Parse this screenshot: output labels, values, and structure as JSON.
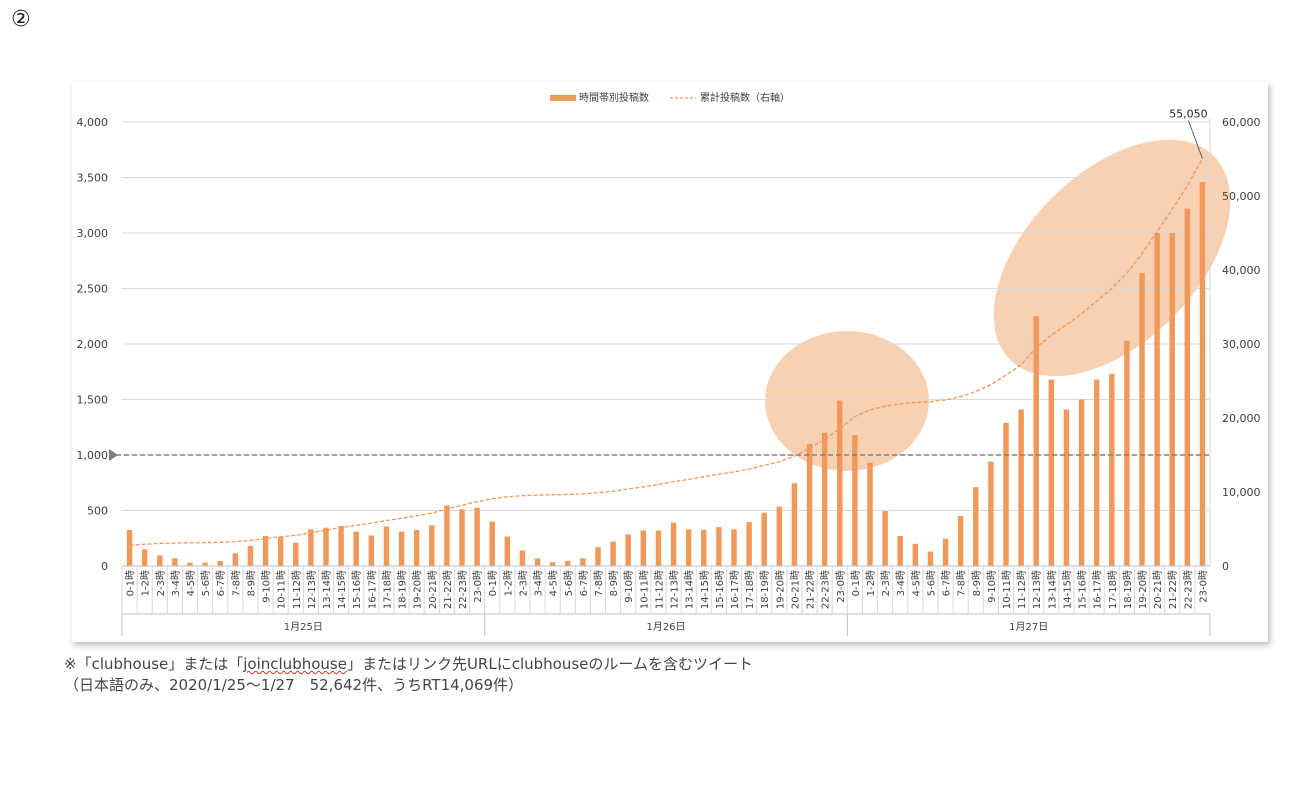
{
  "page_number": "②",
  "legend": {
    "bar_label": "時間帯別投稿数",
    "line_label": "累計投稿数（右軸）"
  },
  "colors": {
    "bar": "#f0995a",
    "line": "#f0995a",
    "highlight": "#f5c19a",
    "reference_line": "#7f7f7f",
    "grid": "#d9d9d9",
    "axis_text": "#404040"
  },
  "footnote": {
    "line1_prefix": "※「clubhouse」または「",
    "line1_underlined": "joinclubhouse",
    "line1_suffix": "」またはリンク先URLにclubhouseのルームを含むツイート",
    "line2": "（日本語のみ、2020/1/25〜1/27　52,642件、うちRT14,069件）"
  },
  "chart_data": {
    "type": "bar",
    "title": "",
    "xlabel": "",
    "ylabel": "",
    "ylim": [
      0,
      4000
    ],
    "y_ticks": [
      0,
      500,
      1000,
      1500,
      2000,
      2500,
      3000,
      3500,
      4000
    ],
    "y_tick_labels": [
      "0",
      "500",
      "1,000",
      "1,500",
      "2,000",
      "2,500",
      "3,000",
      "3,500",
      "4,000"
    ],
    "y2lim": [
      0,
      60000
    ],
    "y2_ticks": [
      0,
      10000,
      20000,
      30000,
      40000,
      50000,
      60000
    ],
    "y2_tick_labels": [
      "0",
      "10,000",
      "20,000",
      "30,000",
      "40,000",
      "50,000",
      "60,000"
    ],
    "grid": true,
    "legend_position": "top-center",
    "reference_line_y": 1000,
    "groups": [
      "1月25日",
      "1月26日",
      "1月27日"
    ],
    "hour_labels": [
      "0-1時",
      "1-2時",
      "2-3時",
      "3-4時",
      "4-5時",
      "5-6時",
      "6-7時",
      "7-8時",
      "8-9時",
      "9-10時",
      "10-11時",
      "11-12時",
      "12-13時",
      "13-14時",
      "14-15時",
      "15-16時",
      "16-17時",
      "17-18時",
      "18-19時",
      "19-20時",
      "20-21時",
      "21-22時",
      "22-23時",
      "23-0時"
    ],
    "series": [
      {
        "name": "時間帯別投稿数",
        "type": "bar",
        "axis": "left",
        "values": [
          325,
          150,
          95,
          70,
          30,
          30,
          45,
          115,
          180,
          270,
          260,
          210,
          330,
          345,
          360,
          310,
          275,
          355,
          310,
          325,
          365,
          545,
          510,
          525,
          400,
          265,
          140,
          70,
          35,
          45,
          70,
          170,
          220,
          285,
          320,
          320,
          390,
          330,
          325,
          350,
          330,
          395,
          480,
          535,
          745,
          1100,
          1200,
          1490,
          1180,
          930,
          495,
          270,
          200,
          130,
          245,
          450,
          710,
          940,
          1290,
          1410,
          2250,
          1680,
          1410,
          1500,
          1680,
          1730,
          2030,
          2640,
          3000,
          3000,
          3220,
          3460
        ]
      },
      {
        "name": "累計投稿数（右軸）",
        "type": "line",
        "axis": "right",
        "values": [
          2800,
          2950,
          3050,
          3100,
          3130,
          3160,
          3200,
          3300,
          3450,
          3700,
          3950,
          4150,
          4500,
          4850,
          5200,
          5500,
          5800,
          6150,
          6450,
          6800,
          7150,
          7700,
          8200,
          8700,
          9100,
          9350,
          9500,
          9580,
          9620,
          9660,
          9730,
          9900,
          10100,
          10400,
          10700,
          11000,
          11400,
          11700,
          12050,
          12400,
          12700,
          13100,
          13600,
          14100,
          14850,
          15900,
          17100,
          18600,
          20200,
          21100,
          21600,
          21900,
          22100,
          22200,
          22450,
          22900,
          23600,
          24500,
          25800,
          27200,
          29500,
          31200,
          32600,
          34100,
          35800,
          37500,
          39600,
          42200,
          45200,
          48200,
          51400,
          55050
        ]
      }
    ],
    "annotations": [
      {
        "text": "55,050",
        "series": "累計投稿数（右軸）",
        "index": 71
      }
    ]
  }
}
